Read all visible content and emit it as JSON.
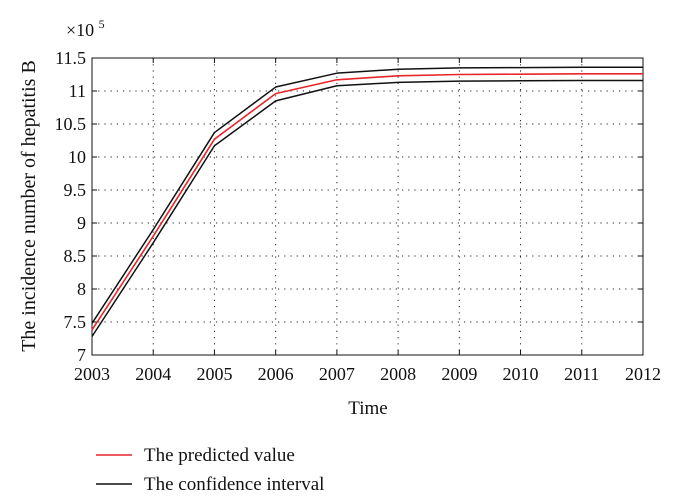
{
  "chart_data": {
    "type": "line",
    "xlabel": "Time",
    "ylabel": "The incidence number of hepatitis B",
    "multiplier_base": "×10",
    "multiplier_exp": "5",
    "xlim": [
      2003,
      2012
    ],
    "ylim": [
      7,
      11.5
    ],
    "x": [
      2003,
      2004,
      2005,
      2006,
      2007,
      2008,
      2009,
      2010,
      2011,
      2012
    ],
    "xticks": [
      "2003",
      "2004",
      "2005",
      "2006",
      "2007",
      "2008",
      "2009",
      "2010",
      "2011",
      "2012"
    ],
    "yticks": [
      "7",
      "7.5",
      "8",
      "8.5",
      "9",
      "9.5",
      "10",
      "10.5",
      "11",
      "11.5"
    ],
    "grid": true,
    "legend_position": "bottom-left",
    "series": [
      {
        "name": "The predicted value",
        "color": "#e8262a",
        "values": [
          7.38,
          8.8,
          10.27,
          10.96,
          11.17,
          11.23,
          11.25,
          11.255,
          11.26,
          11.26
        ]
      },
      {
        "name": "The confidence interval",
        "color": "#111111",
        "values": [
          7.48,
          8.9,
          10.37,
          11.06,
          11.27,
          11.33,
          11.35,
          11.355,
          11.36,
          11.36
        ]
      },
      {
        "name": "",
        "color": "#111111",
        "values": [
          7.28,
          8.7,
          10.17,
          10.85,
          11.08,
          11.13,
          11.15,
          11.155,
          11.16,
          11.16
        ]
      }
    ]
  }
}
